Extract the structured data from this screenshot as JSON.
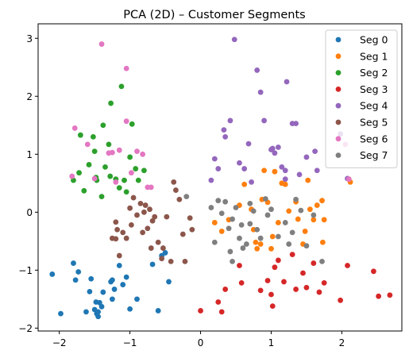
{
  "chart_data": {
    "type": "scatter",
    "title": "PCA (2D) – Customer Segments",
    "xlabel": "",
    "ylabel": "",
    "xlim": [
      -2.3,
      2.85
    ],
    "ylim": [
      -2.05,
      3.25
    ],
    "xticks": [
      -2,
      -1,
      0,
      1,
      2
    ],
    "yticks": [
      -2,
      -1,
      0,
      1,
      2,
      3
    ],
    "grid": false,
    "legend_position": "top-right",
    "series": [
      {
        "name": "Seg 0",
        "color": "#1f77b4",
        "points": [
          [
            -2.1,
            -1.07
          ],
          [
            -1.98,
            -1.75
          ],
          [
            -1.8,
            -0.88
          ],
          [
            -1.77,
            -1.17
          ],
          [
            -1.73,
            -1.03
          ],
          [
            -1.62,
            -1.72
          ],
          [
            -1.57,
            -1.37
          ],
          [
            -1.55,
            -1.15
          ],
          [
            -1.5,
            -1.68
          ],
          [
            -1.48,
            -1.55
          ],
          [
            -1.47,
            -1.75
          ],
          [
            -1.45,
            -1.8
          ],
          [
            -1.43,
            -1.56
          ],
          [
            -1.4,
            -1.63
          ],
          [
            -1.38,
            -1.38
          ],
          [
            -1.27,
            -1.2
          ],
          [
            -1.25,
            -1.5
          ],
          [
            -1.22,
            -1.33
          ],
          [
            -1.15,
            -0.92
          ],
          [
            -1.1,
            -1.25
          ],
          [
            -1.05,
            -1.12
          ],
          [
            -1.0,
            -1.67
          ],
          [
            -0.9,
            -1.5
          ],
          [
            -0.68,
            -0.9
          ],
          [
            -0.6,
            -1.7
          ],
          [
            -0.55,
            -0.75
          ],
          [
            -0.45,
            -1.2
          ],
          [
            -1.25,
            -1.17
          ],
          [
            -1.45,
            -1.72
          ],
          [
            -0.5,
            -0.7
          ]
        ]
      },
      {
        "name": "Seg 1",
        "color": "#ff7f0e",
        "points": [
          [
            0.2,
            -0.18
          ],
          [
            0.3,
            -0.33
          ],
          [
            0.4,
            -0.13
          ],
          [
            0.55,
            0.12
          ],
          [
            0.62,
            0.48
          ],
          [
            0.72,
            0.05
          ],
          [
            0.75,
            -0.3
          ],
          [
            0.78,
            -0.52
          ],
          [
            0.8,
            -0.63
          ],
          [
            0.87,
            0.22
          ],
          [
            0.9,
            0.72
          ],
          [
            0.95,
            0.17
          ],
          [
            1.0,
            -0.63
          ],
          [
            1.02,
            -0.42
          ],
          [
            1.05,
            0.7
          ],
          [
            1.1,
            -0.18
          ],
          [
            1.15,
            0.5
          ],
          [
            1.2,
            0.48
          ],
          [
            1.25,
            0.02
          ],
          [
            1.35,
            0.18
          ],
          [
            1.38,
            -0.12
          ],
          [
            1.45,
            -0.55
          ],
          [
            1.48,
            -0.33
          ],
          [
            1.52,
            0.55
          ],
          [
            1.6,
            -0.13
          ],
          [
            1.65,
            0.12
          ],
          [
            1.72,
            0.2
          ],
          [
            1.73,
            -0.52
          ],
          [
            1.75,
            -0.13
          ],
          [
            2.12,
            0.52
          ],
          [
            0.85,
            -0.55
          ],
          [
            1.55,
            0.05
          ]
        ]
      },
      {
        "name": "Seg 2",
        "color": "#2ca02c",
        "points": [
          [
            -1.8,
            0.55
          ],
          [
            -1.72,
            0.68
          ],
          [
            -1.7,
            1.33
          ],
          [
            -1.65,
            0.37
          ],
          [
            -1.58,
            0.82
          ],
          [
            -1.5,
            1.05
          ],
          [
            -1.47,
            0.55
          ],
          [
            -1.4,
            0.27
          ],
          [
            -1.38,
            1.5
          ],
          [
            -1.35,
            0.78
          ],
          [
            -1.3,
            1.17
          ],
          [
            -1.28,
            0.62
          ],
          [
            -1.27,
            1.88
          ],
          [
            -1.2,
            0.57
          ],
          [
            -1.15,
            0.42
          ],
          [
            -1.12,
            2.17
          ],
          [
            -1.08,
            0.55
          ],
          [
            -1.05,
            0.35
          ],
          [
            -1.0,
            0.95
          ],
          [
            -0.97,
            1.52
          ],
          [
            -0.92,
            0.75
          ],
          [
            -0.88,
            0.55
          ],
          [
            -0.8,
            0.72
          ],
          [
            -1.52,
            1.3
          ],
          [
            -1.48,
            0.6
          ]
        ]
      },
      {
        "name": "Seg 3",
        "color": "#d62728",
        "points": [
          [
            0.0,
            -1.7
          ],
          [
            0.25,
            -1.55
          ],
          [
            0.3,
            -1.72
          ],
          [
            0.35,
            -1.33
          ],
          [
            0.55,
            -0.92
          ],
          [
            0.58,
            -1.22
          ],
          [
            0.85,
            -1.35
          ],
          [
            0.95,
            -1.18
          ],
          [
            1.0,
            -1.42
          ],
          [
            1.02,
            -1.62
          ],
          [
            1.05,
            -0.95
          ],
          [
            1.1,
            -0.83
          ],
          [
            1.18,
            -1.2
          ],
          [
            1.3,
            -0.73
          ],
          [
            1.35,
            -1.33
          ],
          [
            1.45,
            -1.05
          ],
          [
            1.5,
            -1.3
          ],
          [
            1.6,
            -0.88
          ],
          [
            1.68,
            -1.38
          ],
          [
            1.75,
            -1.22
          ],
          [
            1.98,
            -1.52
          ],
          [
            2.08,
            -0.92
          ],
          [
            2.45,
            -1.02
          ],
          [
            2.52,
            -1.45
          ],
          [
            2.68,
            -1.43
          ]
        ]
      },
      {
        "name": "Seg 4",
        "color": "#9467bd",
        "points": [
          [
            0.15,
            0.55
          ],
          [
            0.2,
            0.92
          ],
          [
            0.25,
            0.75
          ],
          [
            0.33,
            1.42
          ],
          [
            0.35,
            1.3
          ],
          [
            0.42,
            1.58
          ],
          [
            0.48,
            2.98
          ],
          [
            0.55,
            0.85
          ],
          [
            0.62,
            0.75
          ],
          [
            0.68,
            1.18
          ],
          [
            0.72,
            0.52
          ],
          [
            0.8,
            2.45
          ],
          [
            0.85,
            2.07
          ],
          [
            0.9,
            1.58
          ],
          [
            1.0,
            1.08
          ],
          [
            1.05,
            1.02
          ],
          [
            1.1,
            1.12
          ],
          [
            1.15,
            0.78
          ],
          [
            1.2,
            0.72
          ],
          [
            1.22,
            2.25
          ],
          [
            1.3,
            1.53
          ],
          [
            1.35,
            1.53
          ],
          [
            1.5,
            0.95
          ],
          [
            1.62,
            1.05
          ],
          [
            1.65,
            0.72
          ],
          [
            1.98,
            1.35
          ],
          [
            1.2,
            0.57
          ],
          [
            1.4,
            0.65
          ],
          [
            2.08,
            0.58
          ],
          [
            1.02,
            1.1
          ]
        ]
      },
      {
        "name": "Seg 5",
        "color": "#8c564b",
        "points": [
          [
            -1.25,
            -0.45
          ],
          [
            -1.2,
            -0.17
          ],
          [
            -1.18,
            -0.3
          ],
          [
            -1.15,
            -0.75
          ],
          [
            -1.1,
            -0.35
          ],
          [
            -1.05,
            -0.45
          ],
          [
            -1.0,
            0.07
          ],
          [
            -0.98,
            -0.22
          ],
          [
            -0.95,
            0.25
          ],
          [
            -0.9,
            -0.05
          ],
          [
            -0.85,
            0.15
          ],
          [
            -0.82,
            -0.35
          ],
          [
            -0.8,
            0.0
          ],
          [
            -0.78,
            0.12
          ],
          [
            -0.75,
            -0.28
          ],
          [
            -0.72,
            0.05
          ],
          [
            -0.7,
            -0.62
          ],
          [
            -0.68,
            -0.15
          ],
          [
            -0.6,
            -0.52
          ],
          [
            -0.55,
            -0.8
          ],
          [
            -0.53,
            -0.62
          ],
          [
            -0.48,
            -0.08
          ],
          [
            -0.42,
            -0.85
          ],
          [
            -0.38,
            0.52
          ],
          [
            -0.35,
            0.38
          ],
          [
            -0.3,
            0.22
          ],
          [
            -0.25,
            -0.38
          ],
          [
            -0.22,
            -0.85
          ],
          [
            -0.15,
            -0.1
          ],
          [
            -0.12,
            -0.3
          ],
          [
            -1.2,
            -0.46
          ],
          [
            -0.65,
            -0.08
          ]
        ]
      },
      {
        "name": "Seg 6",
        "color": "#e377c2",
        "points": [
          [
            -1.82,
            0.62
          ],
          [
            -1.78,
            1.45
          ],
          [
            -1.6,
            1.17
          ],
          [
            -1.5,
            0.58
          ],
          [
            -1.4,
            2.9
          ],
          [
            -1.3,
            1.02
          ],
          [
            -1.25,
            1.03
          ],
          [
            -1.2,
            0.52
          ],
          [
            -1.15,
            1.07
          ],
          [
            -1.05,
            1.57
          ],
          [
            -1.05,
            2.48
          ],
          [
            -0.98,
            0.68
          ],
          [
            -0.9,
            1.05
          ],
          [
            -0.82,
            1.0
          ],
          [
            -0.75,
            0.43
          ],
          [
            -0.7,
            0.43
          ],
          [
            2.05,
            1.17
          ],
          [
            2.1,
            0.57
          ]
        ]
      },
      {
        "name": "Seg 7",
        "color": "#7f7f7f",
        "points": [
          [
            -0.2,
            0.27
          ],
          [
            0.15,
            0.08
          ],
          [
            0.2,
            -0.52
          ],
          [
            0.25,
            0.2
          ],
          [
            0.3,
            -0.02
          ],
          [
            0.35,
            0.18
          ],
          [
            0.4,
            -0.28
          ],
          [
            0.45,
            -0.12
          ],
          [
            0.5,
            0.08
          ],
          [
            0.55,
            -0.45
          ],
          [
            0.58,
            -0.22
          ],
          [
            0.6,
            -0.62
          ],
          [
            0.65,
            -0.55
          ],
          [
            0.7,
            0.15
          ],
          [
            0.75,
            0.02
          ],
          [
            0.8,
            -0.3
          ],
          [
            0.85,
            -0.45
          ],
          [
            0.92,
            0.23
          ],
          [
            0.95,
            -0.05
          ],
          [
            1.0,
            0.05
          ],
          [
            1.1,
            -0.42
          ],
          [
            1.2,
            -0.18
          ],
          [
            1.25,
            -0.55
          ],
          [
            1.3,
            -0.35
          ],
          [
            1.35,
            0.22
          ],
          [
            1.42,
            0.03
          ],
          [
            1.5,
            -0.58
          ],
          [
            1.6,
            -0.05
          ],
          [
            1.72,
            -0.85
          ],
          [
            0.45,
            -0.85
          ],
          [
            0.42,
            -0.68
          ],
          [
            0.7,
            -0.2
          ]
        ]
      }
    ]
  }
}
